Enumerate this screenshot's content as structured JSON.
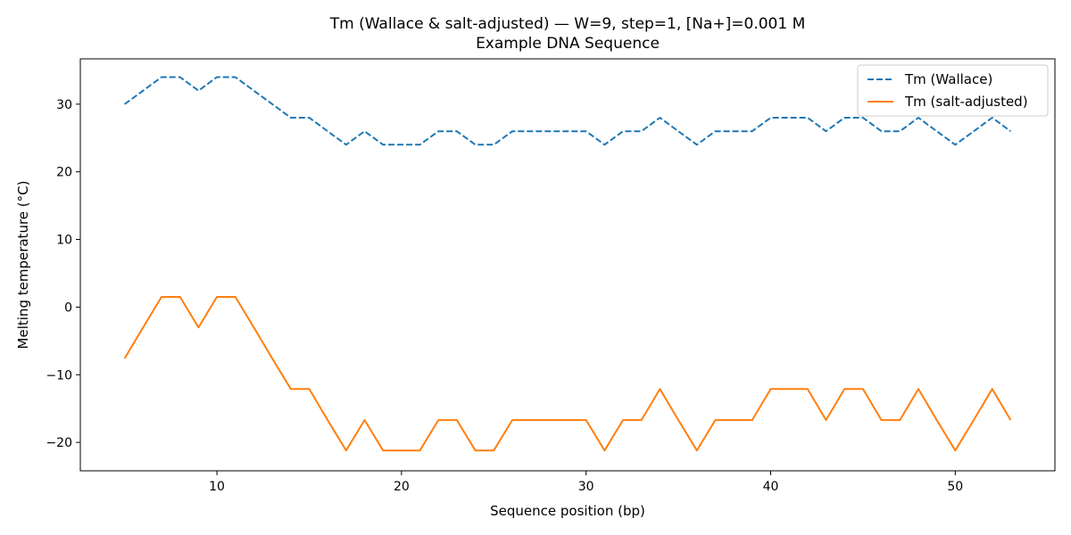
{
  "chart_data": {
    "type": "line",
    "title": "Tm (Wallace & salt-adjusted) — W=9, step=1, [Na+]=0.001 M",
    "subtitle": "Example DNA Sequence",
    "xlabel": "Sequence position (bp)",
    "ylabel": "Melting temperature (°C)",
    "xlim": [
      2.6,
      55.4
    ],
    "ylim": [
      -24.2,
      36.7
    ],
    "xticks": [
      10,
      20,
      30,
      40,
      50
    ],
    "yticks": [
      -20,
      -10,
      0,
      10,
      20,
      30
    ],
    "grid": false,
    "legend_position": "top-right",
    "x": [
      5,
      6,
      7,
      8,
      9,
      10,
      11,
      12,
      13,
      14,
      15,
      16,
      17,
      18,
      19,
      20,
      21,
      22,
      23,
      24,
      25,
      26,
      27,
      28,
      29,
      30,
      31,
      32,
      33,
      34,
      35,
      36,
      37,
      38,
      39,
      40,
      41,
      42,
      43,
      44,
      45,
      46,
      47,
      48,
      49,
      50,
      51,
      52,
      53
    ],
    "series": [
      {
        "name": "Tm (Wallace)",
        "color": "#1f77b4",
        "style": "dashed",
        "values": [
          30,
          32,
          34,
          34,
          32,
          34,
          34,
          32,
          30,
          28,
          28,
          26,
          24,
          26,
          24,
          24,
          24,
          26,
          26,
          24,
          24,
          26,
          26,
          26,
          26,
          26,
          24,
          26,
          26,
          28,
          26,
          24,
          26,
          26,
          26,
          28,
          28,
          28,
          26,
          28,
          28,
          26,
          26,
          28,
          26,
          24,
          26,
          28,
          26
        ]
      },
      {
        "name": "Tm (salt-adjusted)",
        "color": "#ff7f0e",
        "style": "solid",
        "values": [
          -7.6,
          -3.0,
          1.5,
          1.5,
          -3.0,
          1.5,
          1.5,
          -3.0,
          -7.6,
          -12.1,
          -12.1,
          -16.7,
          -21.2,
          -16.7,
          -21.2,
          -21.2,
          -21.2,
          -16.7,
          -16.7,
          -21.2,
          -21.2,
          -16.7,
          -16.7,
          -16.7,
          -16.7,
          -16.7,
          -21.2,
          -16.7,
          -16.7,
          -12.1,
          -16.7,
          -21.2,
          -16.7,
          -16.7,
          -16.7,
          -12.1,
          -12.1,
          -12.1,
          -16.7,
          -12.1,
          -12.1,
          -16.7,
          -16.7,
          -12.1,
          -16.7,
          -21.2,
          -16.7,
          -12.1,
          -16.7
        ]
      }
    ]
  }
}
